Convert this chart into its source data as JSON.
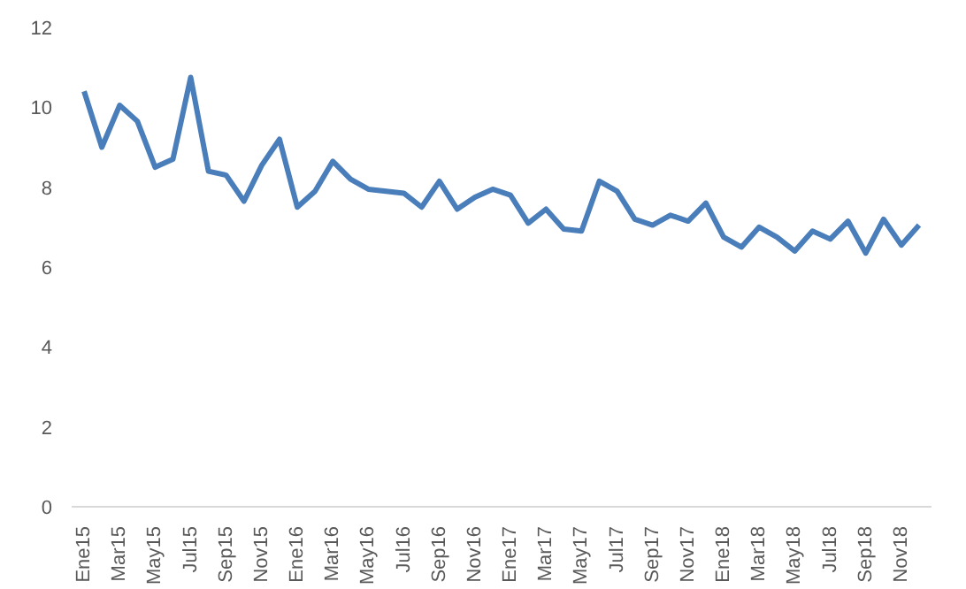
{
  "chart_data": {
    "type": "line",
    "categories": [
      "Ene15",
      null,
      "Mar15",
      null,
      "May15",
      null,
      "Jul15",
      null,
      "Sep15",
      null,
      "Nov15",
      null,
      "Ene16",
      null,
      "Mar16",
      null,
      "May16",
      null,
      "Jul16",
      null,
      "Sep16",
      null,
      "Nov16",
      null,
      "Ene17",
      null,
      "Mar17",
      null,
      "May17",
      null,
      "Jul17",
      null,
      "Sep17",
      null,
      "Nov17",
      null,
      "Ene18",
      null,
      "Mar18",
      null,
      "May18",
      null,
      "Jul18",
      null,
      "Sep18",
      null,
      "Nov18",
      null
    ],
    "series": [
      {
        "color": "#4a7ebb",
        "values": [
          10.4,
          9.0,
          10.05,
          9.65,
          8.5,
          8.7,
          10.75,
          8.4,
          8.3,
          7.65,
          8.55,
          9.2,
          7.5,
          7.9,
          8.65,
          8.2,
          7.95,
          7.9,
          7.85,
          7.5,
          8.15,
          7.45,
          7.75,
          7.95,
          7.8,
          7.1,
          7.45,
          6.95,
          6.9,
          8.15,
          7.9,
          7.2,
          7.05,
          7.3,
          7.15,
          7.6,
          6.75,
          6.5,
          7.0,
          6.75,
          6.4,
          6.9,
          6.7,
          7.15,
          6.35,
          7.2,
          6.55,
          7.05
        ]
      }
    ],
    "ylim": [
      0,
      12
    ],
    "yticks": [
      0,
      2,
      4,
      6,
      8,
      10,
      12
    ],
    "grid": false,
    "marker": "none",
    "line_style": "solid"
  }
}
